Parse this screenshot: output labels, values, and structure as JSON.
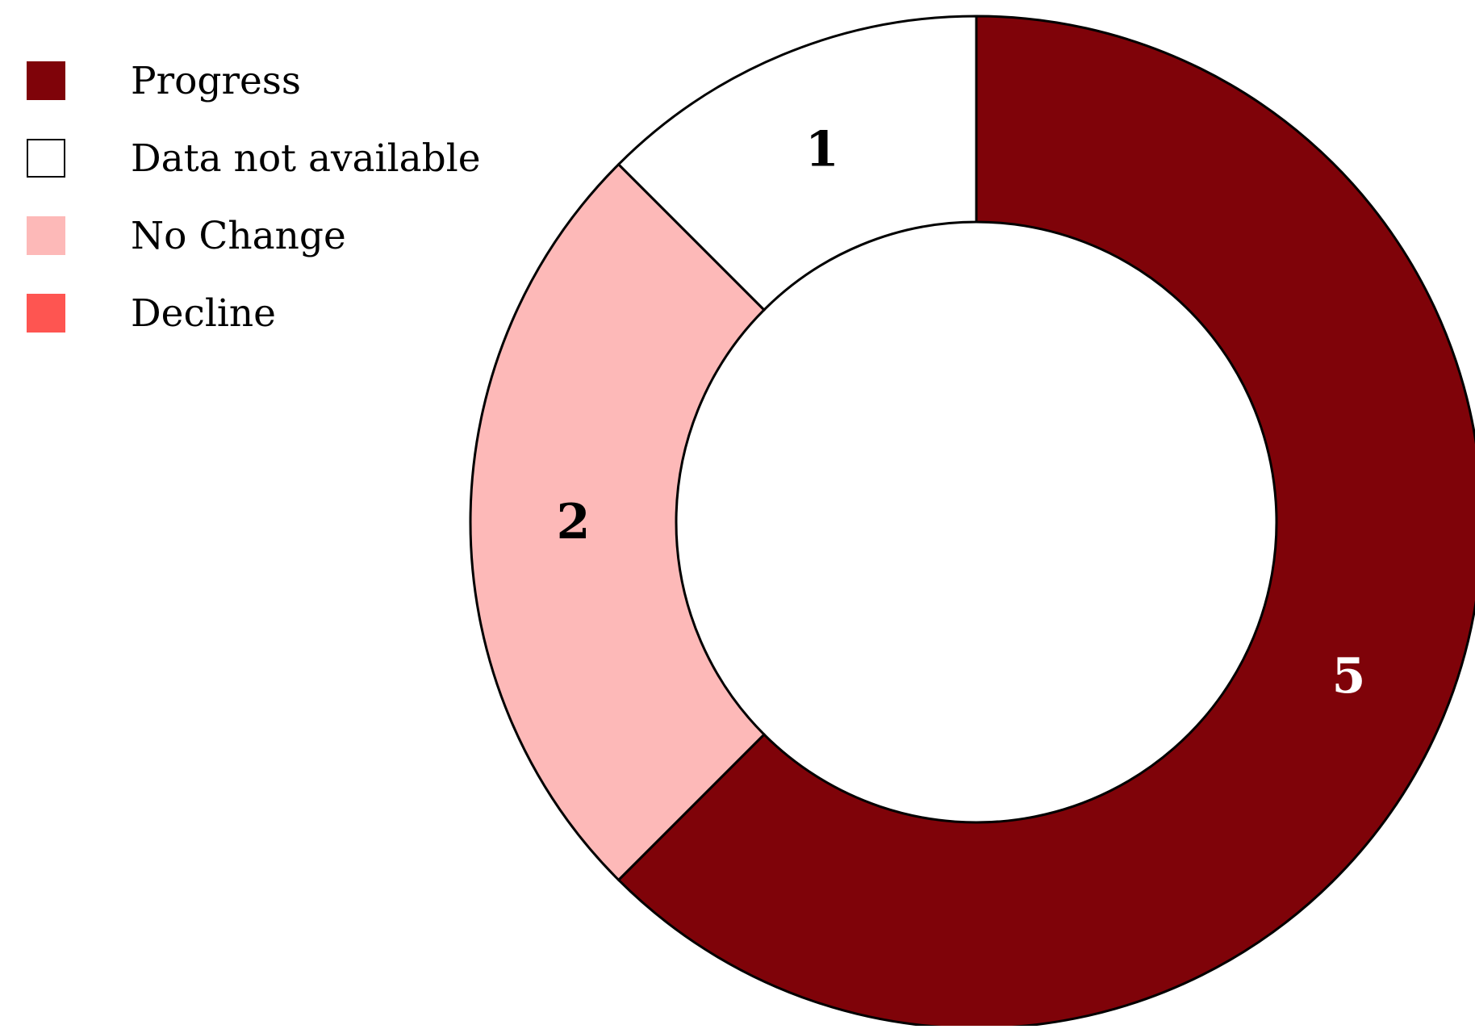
{
  "chart_data": {
    "type": "pie",
    "donut": true,
    "categories": [
      "Progress",
      "Data not available",
      "No Change",
      "Decline"
    ],
    "values": [
      5,
      1,
      2,
      0
    ],
    "colors": [
      "#7f0309",
      "#ffffff",
      "#fdb9b8",
      "#fe5551"
    ],
    "label_colors": [
      "#ffffff",
      "#000000",
      "#000000",
      "#000000"
    ],
    "data_labels": [
      "5",
      "1",
      "2",
      ""
    ],
    "slice_order": [
      "Progress",
      "Decline",
      "No Change",
      "Data not available"
    ],
    "direction": "clockwise",
    "start": "12 o'clock",
    "legend_position": "top-left",
    "title": "",
    "xlabel": "",
    "ylabel": ""
  }
}
